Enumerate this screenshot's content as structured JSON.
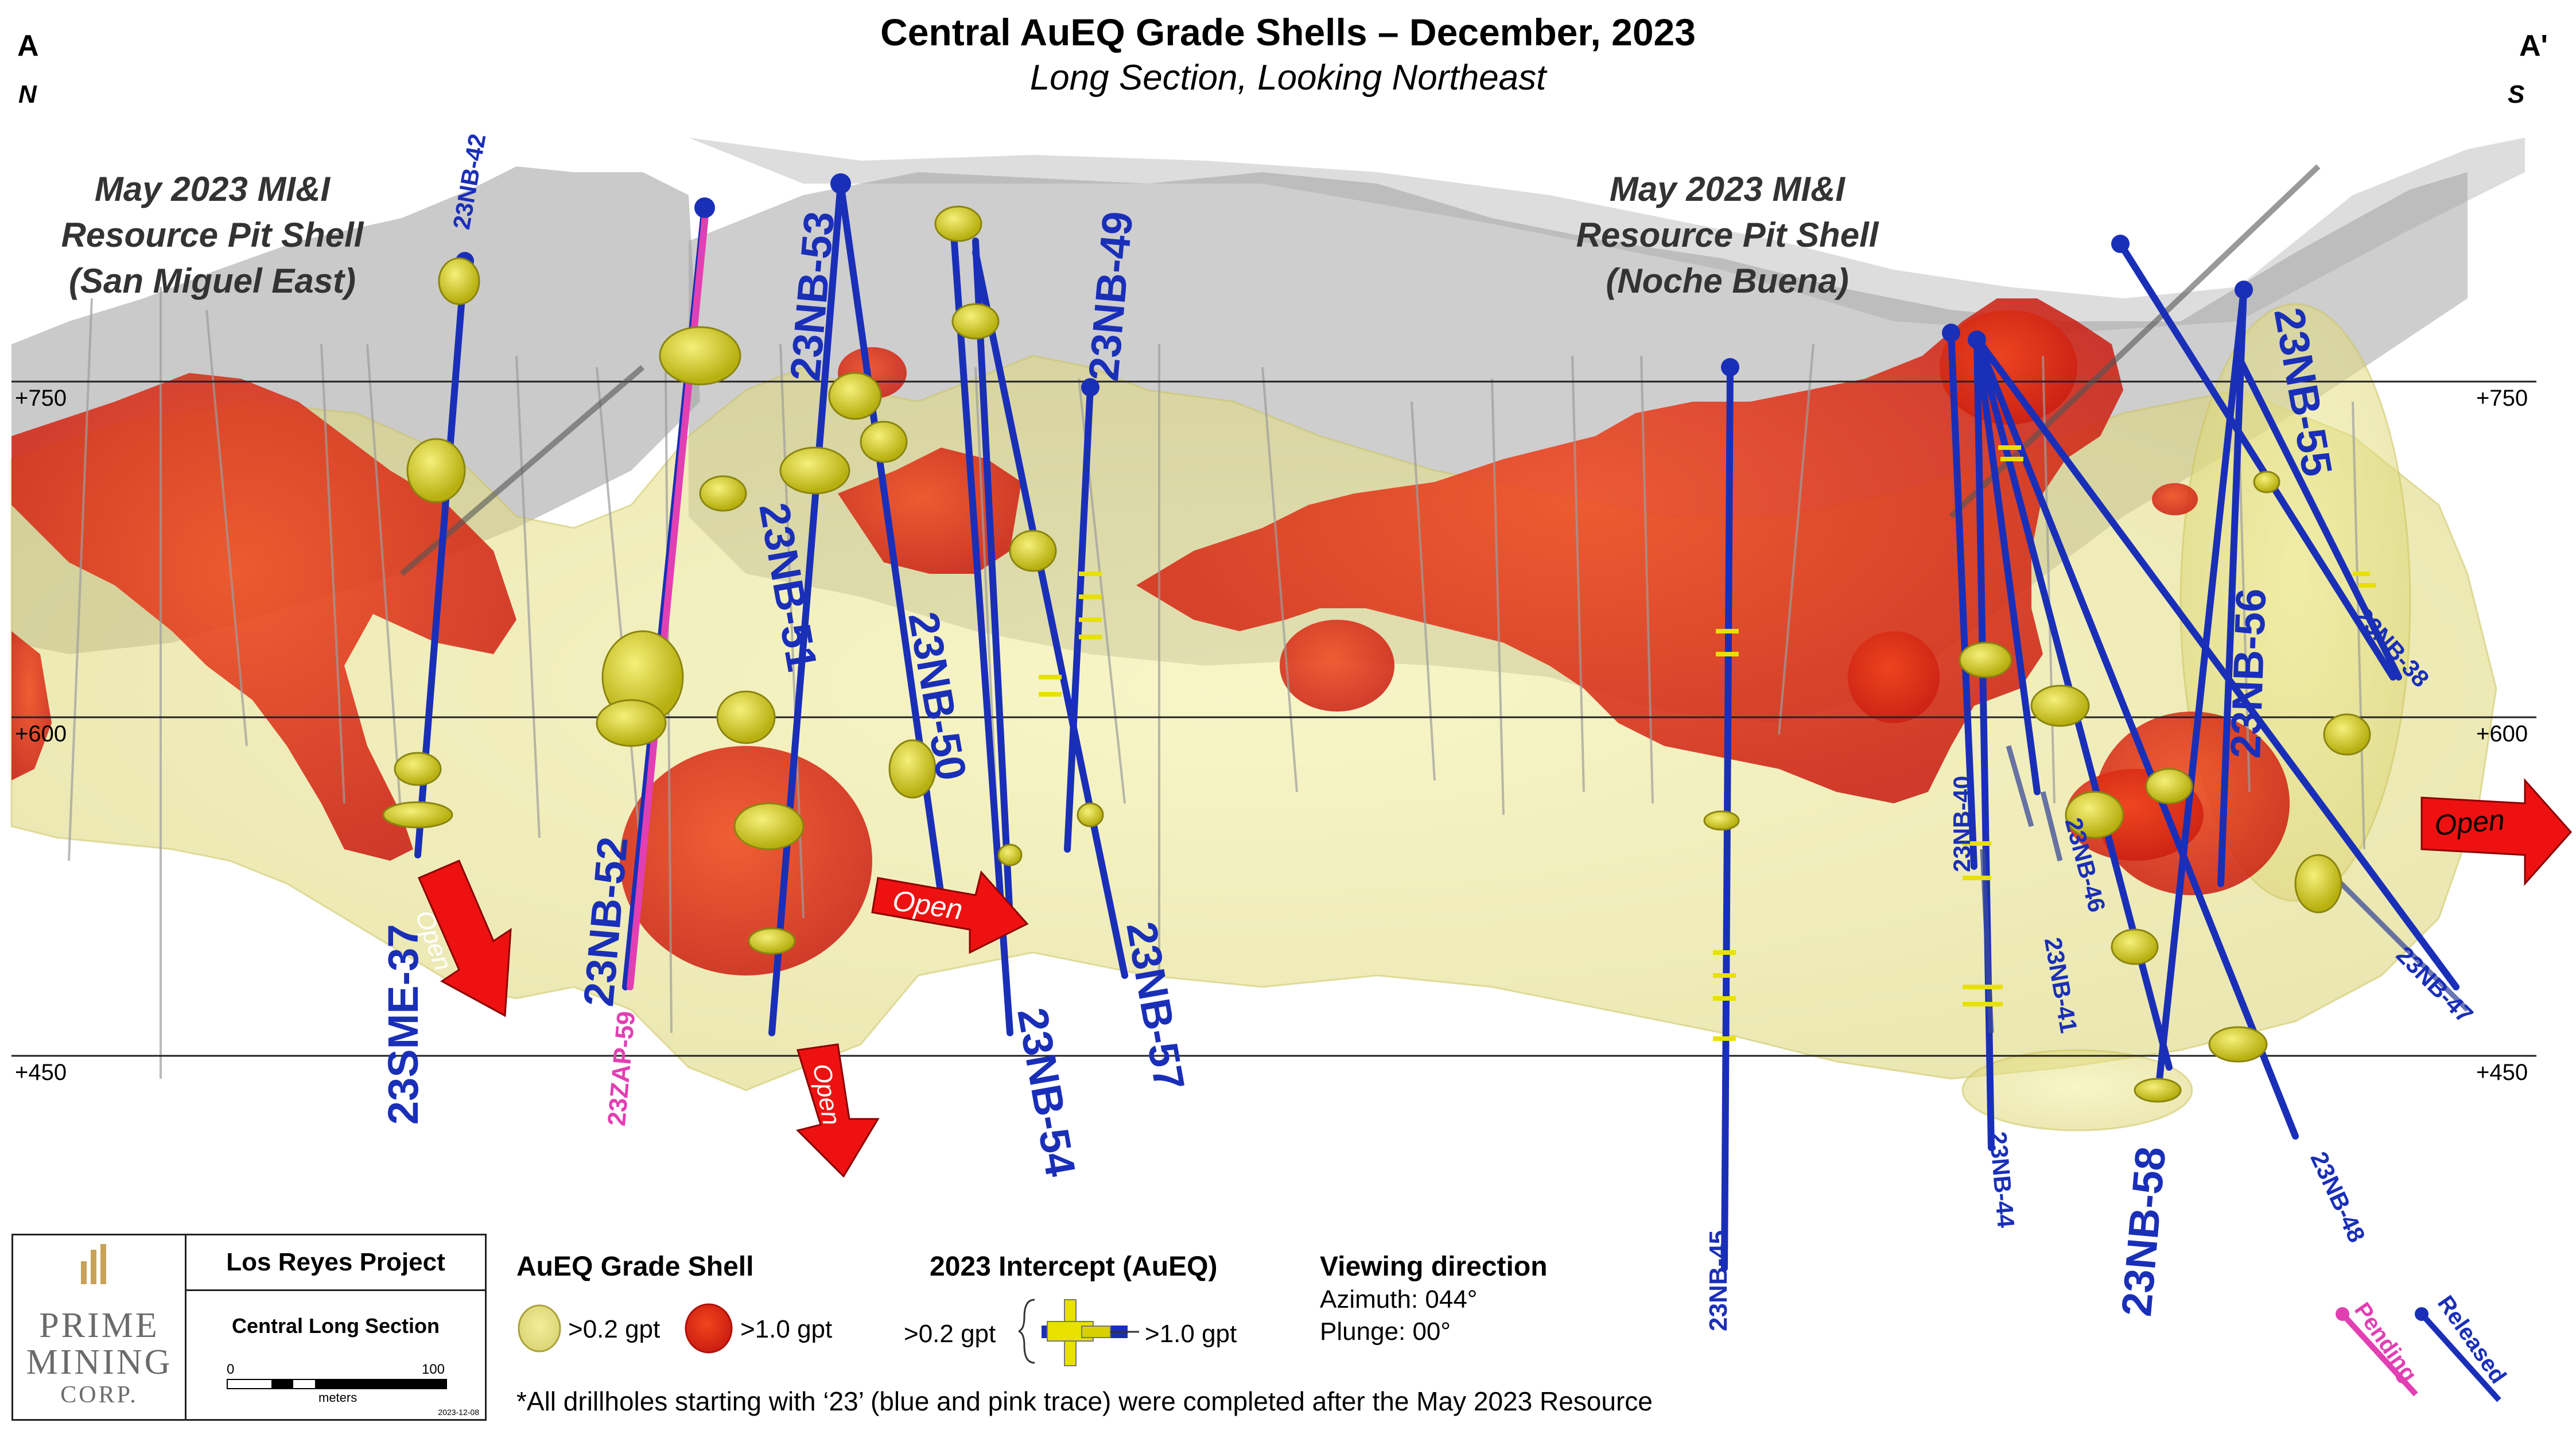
{
  "title": "Central AuEQ Grade Shells – December, 2023",
  "subtitle": "Long Section, Looking Northeast",
  "corners": {
    "left": "A",
    "left_dir": "N",
    "right": "A'",
    "right_dir": "S"
  },
  "pit_shells": {
    "left": {
      "line1": "May 2023 MI&I",
      "line2": "Resource Pit Shell",
      "line3": "(San Miguel East)"
    },
    "right": {
      "line1": "May 2023 MI&I",
      "line2": "Resource Pit Shell",
      "line3": "(Noche Buena)"
    }
  },
  "elevations": [
    "+750",
    "+600",
    "+450"
  ],
  "open_labels": [
    "Open",
    "Open",
    "Open",
    "Open"
  ],
  "drillholes": [
    "23NB-42",
    "23SME-37",
    "23NB-52",
    "23ZAP-59",
    "23NB-53",
    "23NB-51",
    "23NB-49",
    "23NB-50",
    "23NB-54",
    "23NB-57",
    "23NB-45",
    "23NB-40",
    "23NB-46",
    "23NB-41",
    "23NB-44",
    "23NB-58",
    "23NB-56",
    "23NB-55",
    "23NB-38",
    "23NB-47",
    "23NB-48"
  ],
  "project_box": {
    "project": "Los Reyes Project",
    "section": "Central Long Section",
    "scale_min": "0",
    "scale_max": "100",
    "units": "meters",
    "date": "2023-12-08"
  },
  "logo": {
    "line1": "PRIME",
    "line2": "MINING",
    "line3": "CORP."
  },
  "legend_shell": {
    "heading": "AuEQ Grade Shell",
    "low": ">0.2 gpt",
    "high": ">1.0 gpt"
  },
  "legend_intercept": {
    "heading": "2023 Intercept (AuEQ)",
    "low": ">0.2 gpt",
    "high": ">1.0 gpt"
  },
  "viewing": {
    "heading": "Viewing direction",
    "azimuth": "Azimuth: 044°",
    "plunge": "Plunge: 00°"
  },
  "status": {
    "pending": "Pending",
    "released": "Released"
  },
  "footnote": "*All drillholes starting with ‘23’ (blue and pink trace) were completed after the May 2023 Resource",
  "colors": {
    "drill_released": "#1a2fb8",
    "drill_pending": "#e23fb3",
    "shell_low": "#e8e48a",
    "shell_high": "#e0261a",
    "open_arrow": "#ee1111",
    "pit_shell": "#9a9a9a"
  }
}
